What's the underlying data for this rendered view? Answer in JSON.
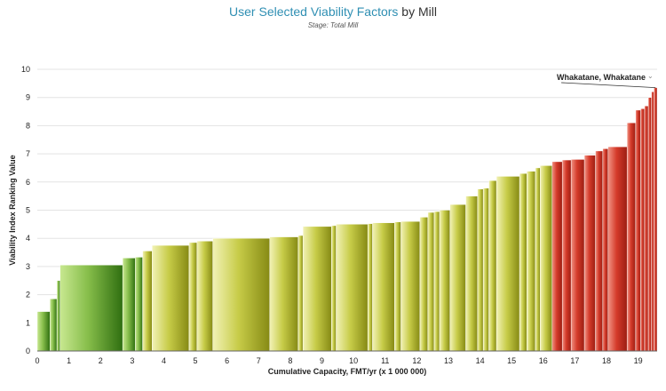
{
  "header": {
    "title_highlight": "User Selected Viability Factors",
    "title_rest": " by Mill",
    "subtitle": "Stage: Total Mill"
  },
  "chart_data": {
    "type": "bar",
    "variant": "variable-width",
    "title": "User Selected Viability Factors by Mill",
    "subtitle": "Stage: Total Mill",
    "xlabel": "Cumulative Capacity, FMT/yr (x 1 000 000)",
    "ylabel": "Viability Index Ranking Value",
    "xlim": [
      0,
      19.6
    ],
    "ylim": [
      0,
      10
    ],
    "xticks": [
      0,
      1,
      2,
      3,
      4,
      5,
      6,
      7,
      8,
      9,
      10,
      11,
      12,
      13,
      14,
      15,
      16,
      17,
      18,
      19
    ],
    "yticks": [
      0,
      1,
      2,
      3,
      4,
      5,
      6,
      7,
      8,
      9,
      10
    ],
    "colors": {
      "low": "#2f6f10",
      "mid": "#c7cc48",
      "high": "#d43a2a",
      "title_accent": "#2f8fb3"
    },
    "annotation": {
      "label": "Whakatane, Whakatane",
      "dropdown_glyph": "⌄"
    },
    "bars": [
      {
        "x0": 0.0,
        "x1": 0.4,
        "value": 1.4,
        "band": "low"
      },
      {
        "x0": 0.4,
        "x1": 0.62,
        "value": 1.85,
        "band": "low"
      },
      {
        "x0": 0.62,
        "x1": 0.72,
        "value": 2.5,
        "band": "low"
      },
      {
        "x0": 0.72,
        "x1": 2.7,
        "value": 3.05,
        "band": "low"
      },
      {
        "x0": 2.7,
        "x1": 3.1,
        "value": 3.3,
        "band": "low"
      },
      {
        "x0": 3.1,
        "x1": 3.33,
        "value": 3.33,
        "band": "low"
      },
      {
        "x0": 3.33,
        "x1": 3.63,
        "value": 3.55,
        "band": "mid"
      },
      {
        "x0": 3.63,
        "x1": 4.8,
        "value": 3.75,
        "band": "mid"
      },
      {
        "x0": 4.8,
        "x1": 5.05,
        "value": 3.85,
        "band": "mid"
      },
      {
        "x0": 5.05,
        "x1": 5.55,
        "value": 3.9,
        "band": "mid"
      },
      {
        "x0": 5.55,
        "x1": 7.35,
        "value": 4.0,
        "band": "mid"
      },
      {
        "x0": 7.35,
        "x1": 8.25,
        "value": 4.05,
        "band": "mid"
      },
      {
        "x0": 8.25,
        "x1": 8.4,
        "value": 4.1,
        "band": "mid"
      },
      {
        "x0": 8.4,
        "x1": 9.3,
        "value": 4.42,
        "band": "mid"
      },
      {
        "x0": 9.3,
        "x1": 9.45,
        "value": 4.45,
        "band": "mid"
      },
      {
        "x0": 9.45,
        "x1": 10.45,
        "value": 4.5,
        "band": "mid"
      },
      {
        "x0": 10.45,
        "x1": 10.6,
        "value": 4.52,
        "band": "mid"
      },
      {
        "x0": 10.6,
        "x1": 11.3,
        "value": 4.55,
        "band": "mid"
      },
      {
        "x0": 11.3,
        "x1": 11.5,
        "value": 4.58,
        "band": "mid"
      },
      {
        "x0": 11.5,
        "x1": 12.1,
        "value": 4.6,
        "band": "mid"
      },
      {
        "x0": 12.1,
        "x1": 12.35,
        "value": 4.75,
        "band": "mid"
      },
      {
        "x0": 12.35,
        "x1": 12.55,
        "value": 4.92,
        "band": "mid"
      },
      {
        "x0": 12.55,
        "x1": 12.72,
        "value": 4.95,
        "band": "mid"
      },
      {
        "x0": 12.72,
        "x1": 13.05,
        "value": 5.0,
        "band": "mid"
      },
      {
        "x0": 13.05,
        "x1": 13.55,
        "value": 5.2,
        "band": "mid"
      },
      {
        "x0": 13.55,
        "x1": 13.92,
        "value": 5.5,
        "band": "mid"
      },
      {
        "x0": 13.92,
        "x1": 14.1,
        "value": 5.75,
        "band": "mid"
      },
      {
        "x0": 14.1,
        "x1": 14.28,
        "value": 5.78,
        "band": "mid"
      },
      {
        "x0": 14.28,
        "x1": 14.52,
        "value": 6.05,
        "band": "mid"
      },
      {
        "x0": 14.52,
        "x1": 15.25,
        "value": 6.2,
        "band": "mid"
      },
      {
        "x0": 15.25,
        "x1": 15.48,
        "value": 6.3,
        "band": "mid"
      },
      {
        "x0": 15.48,
        "x1": 15.75,
        "value": 6.38,
        "band": "mid"
      },
      {
        "x0": 15.75,
        "x1": 15.9,
        "value": 6.5,
        "band": "mid"
      },
      {
        "x0": 15.9,
        "x1": 16.28,
        "value": 6.58,
        "band": "mid"
      },
      {
        "x0": 16.28,
        "x1": 16.6,
        "value": 6.72,
        "band": "high"
      },
      {
        "x0": 16.6,
        "x1": 16.88,
        "value": 6.78,
        "band": "high"
      },
      {
        "x0": 16.88,
        "x1": 17.3,
        "value": 6.8,
        "band": "high"
      },
      {
        "x0": 17.3,
        "x1": 17.65,
        "value": 6.95,
        "band": "high"
      },
      {
        "x0": 17.65,
        "x1": 17.88,
        "value": 7.1,
        "band": "high"
      },
      {
        "x0": 17.88,
        "x1": 18.05,
        "value": 7.18,
        "band": "high"
      },
      {
        "x0": 18.05,
        "x1": 18.65,
        "value": 7.25,
        "band": "high"
      },
      {
        "x0": 18.65,
        "x1": 18.92,
        "value": 8.1,
        "band": "high"
      },
      {
        "x0": 18.92,
        "x1": 19.08,
        "value": 8.55,
        "band": "high"
      },
      {
        "x0": 19.08,
        "x1": 19.2,
        "value": 8.6,
        "band": "high"
      },
      {
        "x0": 19.2,
        "x1": 19.32,
        "value": 8.7,
        "band": "high"
      },
      {
        "x0": 19.32,
        "x1": 19.42,
        "value": 9.0,
        "band": "high"
      },
      {
        "x0": 19.42,
        "x1": 19.5,
        "value": 9.2,
        "band": "high"
      },
      {
        "x0": 19.5,
        "x1": 19.6,
        "value": 9.35,
        "band": "high"
      }
    ]
  }
}
